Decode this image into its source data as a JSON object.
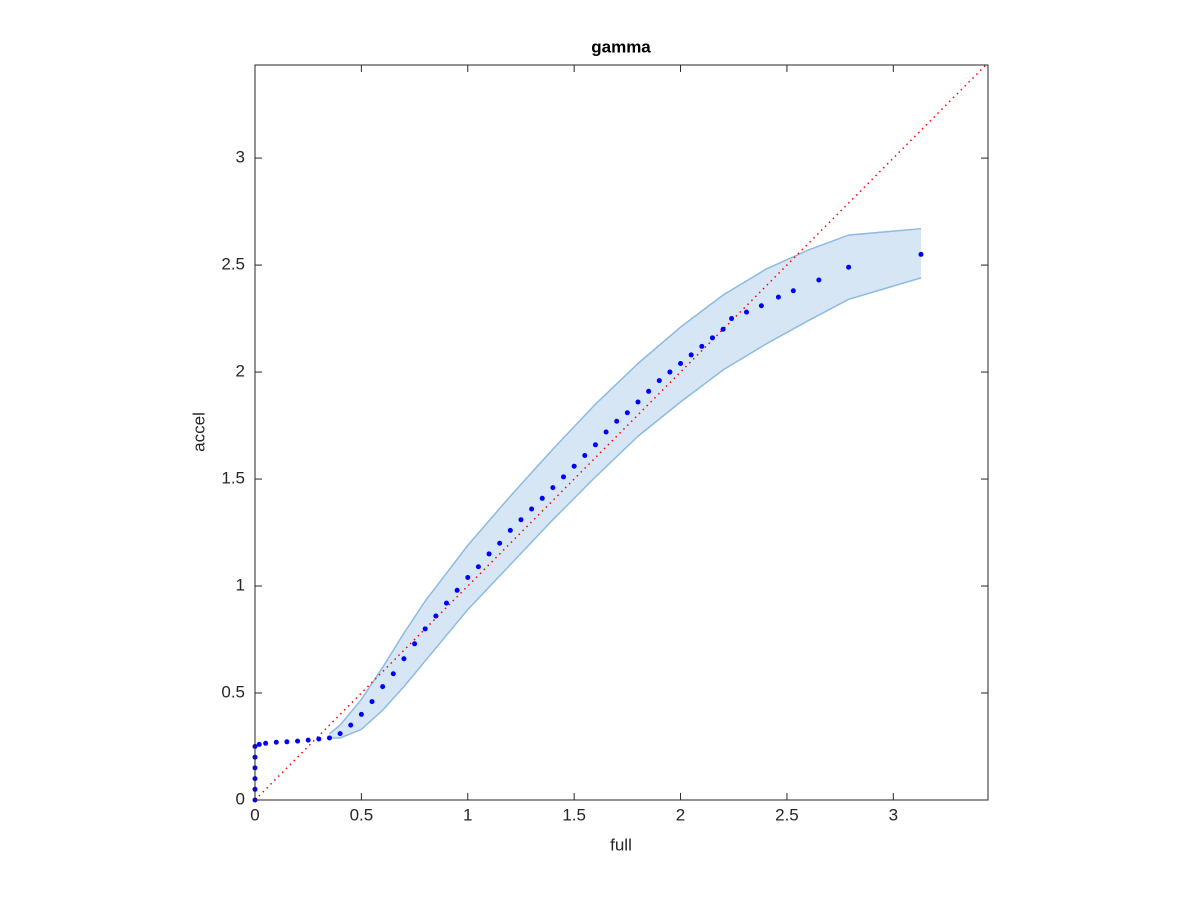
{
  "chart_data": {
    "type": "scatter",
    "title": "gamma",
    "xlabel": "full",
    "ylabel": "accel",
    "xlim": [
      0,
      3.445
    ],
    "ylim": [
      0,
      3.435
    ],
    "xticks": [
      0,
      0.5,
      1,
      1.5,
      2,
      2.5,
      3
    ],
    "yticks": [
      0,
      0.5,
      1,
      1.5,
      2,
      2.5,
      3
    ],
    "band": {
      "color": "#d6e6f4",
      "edge_color": "#8dbbe0",
      "x": [
        0.35,
        0.4,
        0.5,
        0.6,
        0.7,
        0.8,
        0.9,
        1.0,
        1.2,
        1.4,
        1.6,
        1.8,
        2.0,
        2.2,
        2.4,
        2.6,
        2.79,
        3.13
      ],
      "lower": [
        0.29,
        0.29,
        0.33,
        0.42,
        0.53,
        0.65,
        0.77,
        0.89,
        1.1,
        1.31,
        1.51,
        1.7,
        1.86,
        2.01,
        2.13,
        2.24,
        2.34,
        2.44
      ],
      "upper": [
        0.31,
        0.35,
        0.47,
        0.62,
        0.78,
        0.93,
        1.06,
        1.19,
        1.42,
        1.64,
        1.85,
        2.04,
        2.21,
        2.36,
        2.48,
        2.57,
        2.64,
        2.67
      ]
    },
    "reference": {
      "color": "#ff0000",
      "x": [
        0,
        3.445
      ],
      "y": [
        0,
        3.445
      ]
    },
    "points": {
      "color": "#0000ff",
      "x": [
        0,
        0,
        0,
        0,
        0,
        0,
        0.02,
        0.05,
        0.1,
        0.15,
        0.2,
        0.25,
        0.3,
        0.35,
        0.4,
        0.45,
        0.5,
        0.55,
        0.6,
        0.65,
        0.7,
        0.75,
        0.8,
        0.85,
        0.9,
        0.95,
        1.0,
        1.05,
        1.1,
        1.15,
        1.2,
        1.25,
        1.3,
        1.35,
        1.4,
        1.45,
        1.5,
        1.55,
        1.6,
        1.65,
        1.7,
        1.75,
        1.8,
        1.85,
        1.9,
        1.95,
        2.0,
        2.05,
        2.1,
        2.15,
        2.2,
        2.24,
        2.31,
        2.38,
        2.46,
        2.53,
        2.65,
        2.79,
        3.13
      ],
      "y": [
        0,
        0.05,
        0.1,
        0.15,
        0.2,
        0.25,
        0.26,
        0.265,
        0.27,
        0.272,
        0.275,
        0.28,
        0.285,
        0.29,
        0.31,
        0.35,
        0.4,
        0.46,
        0.53,
        0.59,
        0.66,
        0.73,
        0.8,
        0.86,
        0.92,
        0.98,
        1.04,
        1.09,
        1.15,
        1.2,
        1.26,
        1.31,
        1.36,
        1.41,
        1.46,
        1.51,
        1.56,
        1.61,
        1.66,
        1.72,
        1.77,
        1.81,
        1.86,
        1.91,
        1.96,
        2.0,
        2.04,
        2.08,
        2.12,
        2.16,
        2.2,
        2.25,
        2.28,
        2.31,
        2.35,
        2.38,
        2.43,
        2.49,
        2.55
      ]
    }
  }
}
